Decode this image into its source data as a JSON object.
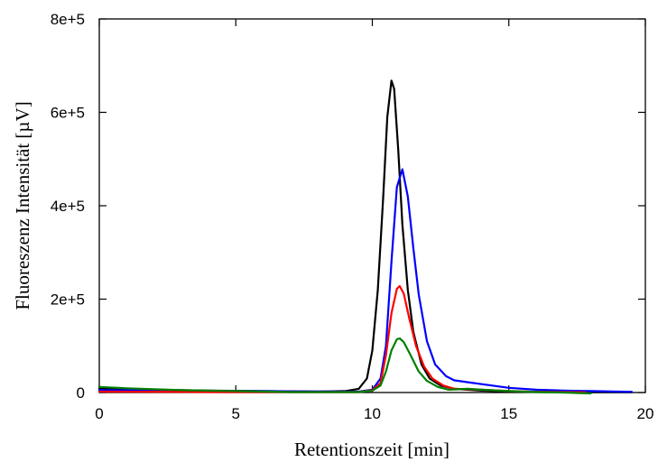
{
  "chart_data": {
    "type": "line",
    "title": "",
    "xlabel": "Retentionszeit [min]",
    "ylabel": "Fluoreszenz Intensität [µV]",
    "xlim": [
      0,
      20
    ],
    "ylim": [
      0,
      800000
    ],
    "x_ticks": [
      {
        "value": 0,
        "label": "0"
      },
      {
        "value": 5,
        "label": "5"
      },
      {
        "value": 10,
        "label": "10"
      },
      {
        "value": 15,
        "label": "15"
      },
      {
        "value": 20,
        "label": "20"
      }
    ],
    "y_ticks": [
      {
        "value": 0,
        "label": "0"
      },
      {
        "value": 200000,
        "label": "2e+5"
      },
      {
        "value": 400000,
        "label": "4e+5"
      },
      {
        "value": 600000,
        "label": "6e+5"
      },
      {
        "value": 800000,
        "label": "8e+5"
      }
    ],
    "grid": false,
    "legend": "none",
    "series": [
      {
        "color": "#000000",
        "x": [
          0,
          2,
          4,
          6,
          8,
          9,
          9.5,
          9.8,
          10.0,
          10.2,
          10.4,
          10.55,
          10.7,
          10.8,
          10.95,
          11.1,
          11.3,
          11.5,
          11.8,
          12.1,
          12.5,
          13.0,
          14.0,
          15.0,
          16.0,
          17.0,
          18.0,
          19.0,
          19.5
        ],
        "y": [
          8000,
          6000,
          4000,
          3000,
          2000,
          3000,
          8000,
          30000,
          90000,
          220000,
          420000,
          590000,
          668000,
          650000,
          520000,
          360000,
          220000,
          130000,
          60000,
          30000,
          15000,
          8000,
          4000,
          2000,
          1500,
          1000,
          800,
          500,
          500
        ]
      },
      {
        "color": "#0000ff",
        "x": [
          0,
          5,
          9.5,
          10.0,
          10.3,
          10.5,
          10.7,
          10.9,
          11.1,
          11.3,
          11.5,
          11.7,
          12.0,
          12.3,
          12.7,
          13.0,
          13.5,
          14.0,
          15.0,
          16.0,
          17.0,
          18.0,
          19.0,
          19.5
        ],
        "y": [
          5000,
          3000,
          2000,
          6000,
          30000,
          100000,
          280000,
          440000,
          478000,
          420000,
          310000,
          210000,
          110000,
          60000,
          35000,
          26000,
          22000,
          18000,
          10000,
          6000,
          4000,
          3000,
          2000,
          1500
        ]
      },
      {
        "color": "#ff0000",
        "x": [
          0,
          5,
          9.5,
          10.0,
          10.3,
          10.5,
          10.7,
          10.9,
          11.0,
          11.15,
          11.35,
          11.6,
          11.9,
          12.2,
          12.6,
          13.0,
          14.0,
          15.0,
          16.0,
          17.0,
          17.8
        ],
        "y": [
          2000,
          1000,
          1000,
          5000,
          20000,
          80000,
          170000,
          222000,
          228000,
          212000,
          160000,
          100000,
          55000,
          30000,
          15000,
          8000,
          6000,
          3000,
          1500,
          1000,
          500
        ]
      },
      {
        "color": "#008000",
        "x": [
          0,
          1,
          3,
          5,
          7,
          9.5,
          10.0,
          10.3,
          10.5,
          10.7,
          10.9,
          11.0,
          11.15,
          11.4,
          11.7,
          12.0,
          12.4,
          12.8,
          13.5,
          14.0,
          15.0,
          16.0,
          17.0,
          18.0
        ],
        "y": [
          12000,
          9000,
          5000,
          3000,
          1000,
          1000,
          4000,
          15000,
          45000,
          90000,
          114000,
          116000,
          108000,
          80000,
          45000,
          25000,
          12000,
          6000,
          8000,
          6000,
          3000,
          1000,
          0,
          -2000
        ]
      }
    ]
  }
}
